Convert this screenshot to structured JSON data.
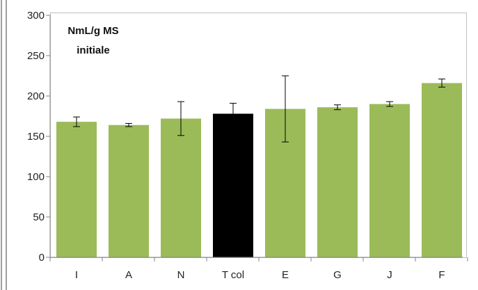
{
  "chart_data": {
    "type": "bar",
    "title": "",
    "xlabel": "",
    "ylabel_lines": [
      "NmL/g MS",
      "initiale"
    ],
    "ylim": [
      0,
      300
    ],
    "yticks": [
      0,
      50,
      100,
      150,
      200,
      250,
      300
    ],
    "grid": false,
    "legend": "none",
    "categories": [
      "I",
      "A",
      "N",
      "T col",
      "E",
      "G",
      "J",
      "F"
    ],
    "values": [
      168,
      164,
      172,
      178,
      184,
      186,
      190,
      216
    ],
    "errors": [
      6,
      2,
      21,
      13,
      41,
      3,
      3,
      5
    ],
    "colors": {
      "default_bar": "#9bbb59",
      "highlight_bar": "#000000",
      "highlight_category": "T col",
      "axis": "#868686",
      "error_bar": "#000000",
      "plot_border": "#bfbfbf",
      "left_frame": "#7f7f7f"
    }
  }
}
